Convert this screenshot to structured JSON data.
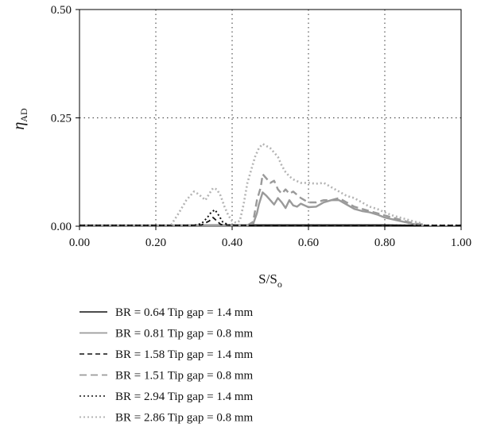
{
  "chart_data": {
    "type": "line",
    "title": "",
    "xlabel": {
      "main": "S/S",
      "sub": "o"
    },
    "ylabel": {
      "main": "η",
      "sub": "AD"
    },
    "xlim": [
      0,
      1
    ],
    "ylim": [
      0,
      0.5
    ],
    "x_ticks": [
      "0.00",
      "0.20",
      "0.40",
      "0.60",
      "0.80",
      "1.00"
    ],
    "y_ticks": [
      "0.00",
      "0.25",
      "0.50"
    ],
    "grid": "dotted, at x = 0.2, 0.4, 0.6, 0.8 and y = 0.25",
    "legend_position": "below the plot",
    "series": [
      {
        "name": "BR = 0.64 Tip gap = 1.4 mm",
        "color": "#111111",
        "dash": "solid",
        "width": 1.6,
        "points": [
          [
            0.0,
            0.002
          ],
          [
            0.2,
            0.002
          ],
          [
            0.4,
            0.003
          ],
          [
            0.6,
            0.003
          ],
          [
            0.8,
            0.003
          ],
          [
            0.9,
            0.002
          ]
        ]
      },
      {
        "name": "BR = 0.81 Tip gap = 0.8 mm",
        "color": "#9a9a9a",
        "dash": "solid",
        "width": 2.4,
        "points": [
          [
            0.0,
            0.002
          ],
          [
            0.44,
            0.002
          ],
          [
            0.455,
            0.005
          ],
          [
            0.465,
            0.03
          ],
          [
            0.47,
            0.05
          ],
          [
            0.48,
            0.078
          ],
          [
            0.49,
            0.07
          ],
          [
            0.5,
            0.06
          ],
          [
            0.51,
            0.05
          ],
          [
            0.52,
            0.065
          ],
          [
            0.53,
            0.055
          ],
          [
            0.54,
            0.042
          ],
          [
            0.55,
            0.06
          ],
          [
            0.56,
            0.048
          ],
          [
            0.57,
            0.045
          ],
          [
            0.58,
            0.052
          ],
          [
            0.6,
            0.044
          ],
          [
            0.62,
            0.045
          ],
          [
            0.64,
            0.055
          ],
          [
            0.66,
            0.06
          ],
          [
            0.68,
            0.06
          ],
          [
            0.7,
            0.05
          ],
          [
            0.72,
            0.04
          ],
          [
            0.74,
            0.035
          ],
          [
            0.76,
            0.032
          ],
          [
            0.78,
            0.027
          ],
          [
            0.8,
            0.02
          ],
          [
            0.82,
            0.016
          ],
          [
            0.84,
            0.012
          ],
          [
            0.86,
            0.008
          ],
          [
            0.88,
            0.004
          ],
          [
            0.9,
            0.002
          ]
        ]
      },
      {
        "name": "BR = 1.58 Tip gap = 1.4 mm",
        "color": "#111111",
        "dash": "6,4",
        "width": 1.8,
        "points": [
          [
            0.0,
            0.002
          ],
          [
            0.3,
            0.002
          ],
          [
            0.32,
            0.003
          ],
          [
            0.34,
            0.012
          ],
          [
            0.35,
            0.02
          ],
          [
            0.36,
            0.012
          ],
          [
            0.37,
            0.004
          ],
          [
            0.4,
            0.002
          ],
          [
            1.0,
            0.002
          ]
        ]
      },
      {
        "name": "BR = 1.51 Tip gap = 0.8 mm",
        "color": "#9a9a9a",
        "dash": "9,5",
        "width": 2.4,
        "points": [
          [
            0.44,
            0.002
          ],
          [
            0.455,
            0.01
          ],
          [
            0.465,
            0.06
          ],
          [
            0.475,
            0.09
          ],
          [
            0.48,
            0.12
          ],
          [
            0.49,
            0.11
          ],
          [
            0.5,
            0.1
          ],
          [
            0.51,
            0.105
          ],
          [
            0.52,
            0.085
          ],
          [
            0.53,
            0.075
          ],
          [
            0.54,
            0.085
          ],
          [
            0.55,
            0.075
          ],
          [
            0.56,
            0.08
          ],
          [
            0.58,
            0.065
          ],
          [
            0.6,
            0.055
          ],
          [
            0.62,
            0.055
          ],
          [
            0.64,
            0.06
          ],
          [
            0.66,
            0.06
          ],
          [
            0.68,
            0.065
          ],
          [
            0.7,
            0.055
          ],
          [
            0.72,
            0.045
          ],
          [
            0.74,
            0.04
          ],
          [
            0.76,
            0.035
          ],
          [
            0.78,
            0.03
          ],
          [
            0.8,
            0.025
          ],
          [
            0.82,
            0.02
          ],
          [
            0.84,
            0.015
          ],
          [
            0.86,
            0.01
          ],
          [
            0.88,
            0.006
          ],
          [
            0.9,
            0.004
          ]
        ]
      },
      {
        "name": "BR = 2.94 Tip gap = 1.4 mm",
        "color": "#111111",
        "dash": "2,3",
        "width": 2.0,
        "points": [
          [
            0.0,
            0.002
          ],
          [
            0.3,
            0.002
          ],
          [
            0.32,
            0.006
          ],
          [
            0.335,
            0.02
          ],
          [
            0.345,
            0.032
          ],
          [
            0.355,
            0.038
          ],
          [
            0.365,
            0.025
          ],
          [
            0.375,
            0.01
          ],
          [
            0.39,
            0.003
          ],
          [
            0.42,
            0.002
          ],
          [
            1.0,
            0.002
          ]
        ]
      },
      {
        "name": "BR = 2.86 Tip gap = 0.8 mm",
        "color": "#b4b4b4",
        "dash": "2,3",
        "width": 2.6,
        "points": [
          [
            0.24,
            0.003
          ],
          [
            0.26,
            0.03
          ],
          [
            0.28,
            0.06
          ],
          [
            0.3,
            0.08
          ],
          [
            0.31,
            0.075
          ],
          [
            0.32,
            0.068
          ],
          [
            0.33,
            0.06
          ],
          [
            0.34,
            0.075
          ],
          [
            0.35,
            0.088
          ],
          [
            0.36,
            0.085
          ],
          [
            0.37,
            0.07
          ],
          [
            0.38,
            0.045
          ],
          [
            0.39,
            0.025
          ],
          [
            0.4,
            0.012
          ],
          [
            0.41,
            0.008
          ],
          [
            0.42,
            0.012
          ],
          [
            0.43,
            0.05
          ],
          [
            0.44,
            0.1
          ],
          [
            0.45,
            0.13
          ],
          [
            0.46,
            0.16
          ],
          [
            0.47,
            0.18
          ],
          [
            0.48,
            0.19
          ],
          [
            0.49,
            0.185
          ],
          [
            0.5,
            0.18
          ],
          [
            0.51,
            0.17
          ],
          [
            0.52,
            0.16
          ],
          [
            0.53,
            0.14
          ],
          [
            0.54,
            0.125
          ],
          [
            0.55,
            0.115
          ],
          [
            0.56,
            0.108
          ],
          [
            0.58,
            0.1
          ],
          [
            0.6,
            0.1
          ],
          [
            0.62,
            0.098
          ],
          [
            0.64,
            0.1
          ],
          [
            0.66,
            0.09
          ],
          [
            0.68,
            0.08
          ],
          [
            0.7,
            0.07
          ],
          [
            0.72,
            0.065
          ],
          [
            0.74,
            0.055
          ],
          [
            0.76,
            0.045
          ],
          [
            0.78,
            0.04
          ],
          [
            0.8,
            0.032
          ],
          [
            0.82,
            0.025
          ],
          [
            0.84,
            0.02
          ],
          [
            0.86,
            0.015
          ],
          [
            0.88,
            0.01
          ],
          [
            0.9,
            0.006
          ]
        ]
      }
    ]
  }
}
